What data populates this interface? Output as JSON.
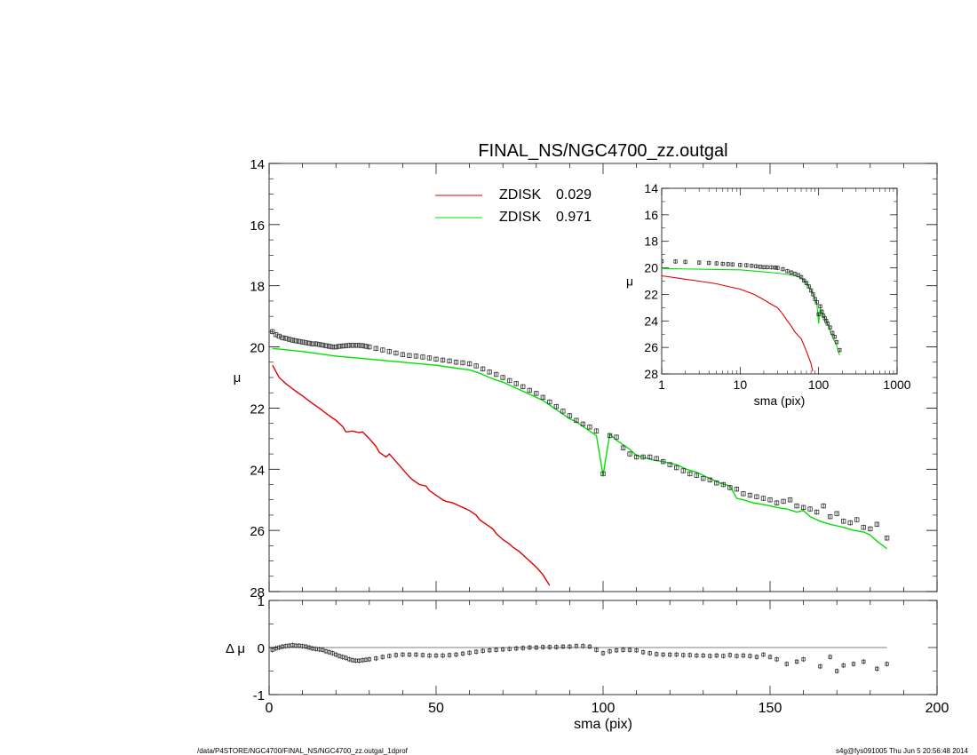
{
  "chart_data": [
    {
      "type": "scatter",
      "name": "main-profile",
      "title": "FINAL_NS/NGC4700_zz.outgal",
      "xlabel": "",
      "ylabel": "μ",
      "xlim": [
        0,
        200
      ],
      "ylim": [
        28,
        14
      ],
      "y_inverted": true,
      "yticks": [
        14,
        16,
        18,
        20,
        22,
        24,
        26,
        28
      ],
      "legend": {
        "placement": "top-center",
        "entries": [
          {
            "label": "ZDISK",
            "value": "0.029",
            "color": "#e00000"
          },
          {
            "label": "ZDISK",
            "value": "0.971",
            "color": "#00e000"
          }
        ]
      },
      "series": [
        {
          "kind": "points-with-errorbars",
          "color": "#000000",
          "x": [
            1,
            2,
            3,
            4,
            5,
            6,
            7,
            8,
            9,
            10,
            11,
            12,
            13,
            14,
            15,
            16,
            17,
            18,
            19,
            20,
            21,
            22,
            23,
            24,
            25,
            26,
            27,
            28,
            29,
            30,
            32,
            34,
            36,
            38,
            40,
            42,
            44,
            46,
            48,
            50,
            52,
            54,
            56,
            58,
            60,
            62,
            64,
            66,
            68,
            70,
            72,
            74,
            76,
            78,
            80,
            82,
            84,
            86,
            88,
            90,
            92,
            94,
            96,
            98,
            100,
            102,
            104,
            106,
            108,
            110,
            112,
            114,
            116,
            118,
            120,
            122,
            124,
            126,
            128,
            130,
            132,
            134,
            136,
            138,
            140,
            142,
            144,
            146,
            148,
            150,
            152,
            154,
            156,
            158,
            160,
            162,
            164,
            166,
            168,
            170,
            172,
            174,
            176,
            178,
            180,
            182,
            185
          ],
          "y": [
            19.5,
            19.6,
            19.65,
            19.7,
            19.72,
            19.75,
            19.78,
            19.8,
            19.82,
            19.84,
            19.86,
            19.88,
            19.9,
            19.9,
            19.92,
            19.94,
            19.96,
            19.98,
            20.0,
            20.0,
            19.98,
            19.97,
            19.96,
            19.95,
            19.95,
            19.95,
            19.95,
            19.96,
            19.98,
            20.0,
            20.05,
            20.1,
            20.15,
            20.2,
            20.25,
            20.28,
            20.3,
            20.33,
            20.36,
            20.4,
            20.43,
            20.46,
            20.5,
            20.52,
            20.55,
            20.62,
            20.72,
            20.82,
            20.9,
            21.0,
            21.1,
            21.2,
            21.3,
            21.42,
            21.52,
            21.65,
            21.8,
            21.95,
            22.1,
            22.25,
            22.4,
            22.52,
            22.62,
            22.75,
            24.15,
            22.9,
            22.95,
            23.3,
            23.5,
            23.6,
            23.6,
            23.6,
            23.65,
            23.75,
            23.85,
            23.95,
            24.05,
            24.15,
            24.2,
            24.3,
            24.35,
            24.45,
            24.5,
            24.6,
            24.65,
            24.8,
            24.85,
            24.9,
            24.95,
            25.0,
            25.1,
            25.05,
            25.0,
            25.2,
            25.25,
            25.3,
            25.4,
            25.2,
            25.55,
            25.45,
            25.7,
            25.75,
            25.65,
            25.9,
            25.95,
            25.8,
            26.25
          ]
        },
        {
          "kind": "line",
          "name": "ZDISK 0.029",
          "color": "#e00000",
          "x": [
            1,
            3,
            5,
            8,
            10,
            13,
            15,
            18,
            20,
            22,
            23,
            25,
            27,
            28,
            30,
            32,
            33,
            35,
            36,
            38,
            40,
            42,
            43,
            45,
            47,
            48,
            50,
            52,
            53,
            55,
            57,
            58,
            60,
            62,
            63,
            65,
            67,
            68,
            70,
            72,
            73,
            75,
            77,
            78,
            80,
            82,
            84
          ],
          "y": [
            20.6,
            21.0,
            21.2,
            21.45,
            21.6,
            21.85,
            22.0,
            22.25,
            22.4,
            22.6,
            22.78,
            22.75,
            22.8,
            22.78,
            23.0,
            23.25,
            23.45,
            23.6,
            23.5,
            23.75,
            24.0,
            24.25,
            24.35,
            24.5,
            24.55,
            24.7,
            24.85,
            25.0,
            25.05,
            25.1,
            25.2,
            25.25,
            25.35,
            25.5,
            25.65,
            25.8,
            25.95,
            26.1,
            26.3,
            26.45,
            26.55,
            26.7,
            26.9,
            27.0,
            27.2,
            27.45,
            27.8
          ]
        },
        {
          "kind": "line",
          "name": "ZDISK 0.971",
          "color": "#00e000",
          "x": [
            1,
            10,
            20,
            30,
            40,
            50,
            55,
            60,
            62,
            64,
            66,
            68,
            70,
            72,
            74,
            76,
            78,
            80,
            82,
            84,
            86,
            88,
            90,
            92,
            94,
            96,
            98,
            100,
            102,
            104,
            106,
            108,
            110,
            112,
            115,
            118,
            120,
            122,
            125,
            128,
            130,
            132,
            135,
            138,
            140,
            142,
            145,
            148,
            150,
            152,
            155,
            158,
            160,
            162,
            165,
            168,
            170,
            172,
            175,
            178,
            180,
            182,
            185
          ],
          "y": [
            20.05,
            20.15,
            20.3,
            20.4,
            20.5,
            20.6,
            20.68,
            20.75,
            20.82,
            20.9,
            21.0,
            21.08,
            21.15,
            21.25,
            21.35,
            21.45,
            21.55,
            21.65,
            21.75,
            21.9,
            22.05,
            22.2,
            22.35,
            22.45,
            22.6,
            22.75,
            22.9,
            24.2,
            22.85,
            23.05,
            23.2,
            23.35,
            23.55,
            23.6,
            23.7,
            23.75,
            23.8,
            23.85,
            24.0,
            24.1,
            24.2,
            24.3,
            24.45,
            24.55,
            24.95,
            25.0,
            25.1,
            25.15,
            25.2,
            25.25,
            25.3,
            25.4,
            25.35,
            25.55,
            25.7,
            25.8,
            25.85,
            25.9,
            26.0,
            26.05,
            26.15,
            26.35,
            26.6
          ]
        }
      ]
    },
    {
      "type": "scatter",
      "name": "inset-log-profile",
      "xlabel": "sma (pix)",
      "ylabel": "μ",
      "x_scale": "log",
      "xlim": [
        1,
        1000
      ],
      "ylim": [
        28,
        14
      ],
      "y_inverted": true,
      "xticks": [
        1,
        10,
        100,
        1000
      ],
      "yticks": [
        14,
        16,
        18,
        20,
        22,
        24,
        26,
        28
      ],
      "series": [
        {
          "kind": "points-with-errorbars",
          "color": "#000000",
          "x": [
            1,
            1.5,
            2,
            3,
            4,
            5,
            6,
            7,
            8,
            10,
            12,
            14,
            16,
            18,
            20,
            22,
            25,
            28,
            30,
            35,
            40,
            45,
            50,
            55,
            60,
            65,
            70,
            75,
            80,
            85,
            90,
            95,
            100,
            105,
            110,
            115,
            120,
            125,
            130,
            140,
            150,
            160,
            170,
            185
          ],
          "y": [
            19.5,
            19.52,
            19.55,
            19.6,
            19.63,
            19.66,
            19.7,
            19.72,
            19.74,
            19.78,
            19.8,
            19.84,
            19.88,
            19.92,
            19.95,
            19.95,
            19.96,
            19.98,
            20.0,
            20.1,
            20.25,
            20.35,
            20.45,
            20.55,
            20.7,
            20.95,
            21.15,
            21.4,
            21.7,
            22.0,
            22.35,
            22.6,
            23.5,
            22.9,
            23.3,
            23.6,
            23.8,
            24.0,
            24.2,
            24.5,
            24.9,
            25.2,
            25.6,
            26.2
          ]
        },
        {
          "kind": "line",
          "name": "ZDISK 0.029",
          "color": "#e00000",
          "x": [
            1,
            2,
            3,
            5,
            7,
            10,
            15,
            20,
            25,
            30,
            35,
            40,
            45,
            50,
            55,
            60,
            70,
            80,
            84
          ],
          "y": [
            20.6,
            20.85,
            21.0,
            21.2,
            21.4,
            21.6,
            22.0,
            22.4,
            22.75,
            23.0,
            23.5,
            24.0,
            24.4,
            24.85,
            25.1,
            25.35,
            26.3,
            27.2,
            27.8
          ]
        },
        {
          "kind": "line",
          "name": "ZDISK 0.971",
          "color": "#00e000",
          "x": [
            1,
            3,
            5,
            10,
            20,
            30,
            40,
            50,
            60,
            70,
            80,
            90,
            95,
            100,
            105,
            110,
            120,
            130,
            150,
            170,
            185
          ],
          "y": [
            20.05,
            20.1,
            20.12,
            20.15,
            20.3,
            20.4,
            20.5,
            20.6,
            20.75,
            21.15,
            21.65,
            22.35,
            22.7,
            24.2,
            23.0,
            23.55,
            23.8,
            24.2,
            25.2,
            25.85,
            26.6
          ]
        }
      ]
    },
    {
      "type": "scatter",
      "name": "residuals",
      "xlabel": "sma (pix)",
      "ylabel": "Δ μ",
      "xlim": [
        0,
        200
      ],
      "ylim": [
        -1,
        1
      ],
      "xticks": [
        0,
        50,
        100,
        150,
        200
      ],
      "yticks": [
        -1,
        0,
        1
      ],
      "series": [
        {
          "kind": "points-with-errorbars",
          "color": "#000000",
          "x": [
            1,
            2,
            3,
            4,
            5,
            6,
            7,
            8,
            9,
            10,
            11,
            12,
            13,
            14,
            15,
            16,
            17,
            18,
            19,
            20,
            21,
            22,
            23,
            24,
            25,
            26,
            27,
            28,
            29,
            30,
            32,
            34,
            36,
            38,
            40,
            42,
            44,
            46,
            48,
            50,
            52,
            54,
            56,
            58,
            60,
            62,
            64,
            66,
            68,
            70,
            72,
            74,
            76,
            78,
            80,
            82,
            84,
            86,
            88,
            90,
            92,
            94,
            96,
            98,
            100,
            102,
            104,
            106,
            108,
            110,
            112,
            114,
            116,
            118,
            120,
            122,
            124,
            126,
            128,
            130,
            132,
            134,
            136,
            138,
            140,
            142,
            144,
            146,
            148,
            150,
            152,
            155,
            158,
            160,
            165,
            168,
            170,
            172,
            175,
            178,
            182,
            185
          ],
          "y": [
            -0.05,
            -0.02,
            0.0,
            0.02,
            0.03,
            0.04,
            0.05,
            0.04,
            0.04,
            0.03,
            0.02,
            0.0,
            -0.02,
            -0.03,
            -0.04,
            -0.05,
            -0.08,
            -0.1,
            -0.12,
            -0.15,
            -0.18,
            -0.2,
            -0.22,
            -0.25,
            -0.27,
            -0.28,
            -0.28,
            -0.27,
            -0.26,
            -0.25,
            -0.23,
            -0.2,
            -0.18,
            -0.16,
            -0.15,
            -0.15,
            -0.15,
            -0.16,
            -0.17,
            -0.17,
            -0.17,
            -0.16,
            -0.15,
            -0.13,
            -0.11,
            -0.09,
            -0.07,
            -0.06,
            -0.05,
            -0.04,
            -0.03,
            -0.02,
            -0.01,
            0.0,
            0.0,
            0.01,
            0.01,
            0.01,
            0.02,
            0.02,
            0.03,
            0.03,
            0.02,
            -0.05,
            -0.12,
            -0.08,
            -0.06,
            -0.05,
            -0.05,
            -0.06,
            -0.1,
            -0.12,
            -0.14,
            -0.15,
            -0.15,
            -0.15,
            -0.16,
            -0.16,
            -0.17,
            -0.17,
            -0.18,
            -0.17,
            -0.18,
            -0.16,
            -0.18,
            -0.17,
            -0.18,
            -0.2,
            -0.15,
            -0.2,
            -0.25,
            -0.35,
            -0.3,
            -0.25,
            -0.4,
            -0.2,
            -0.5,
            -0.38,
            -0.35,
            -0.3,
            -0.45,
            -0.35
          ]
        }
      ]
    }
  ],
  "footer": {
    "path": "/data/P4STORE/NGC4700/FINAL_NS/NGC4700_zz.outgal_1dprof",
    "stamp": "s4g@fys091005  Thu Jun  5 20:56:48 2014"
  }
}
